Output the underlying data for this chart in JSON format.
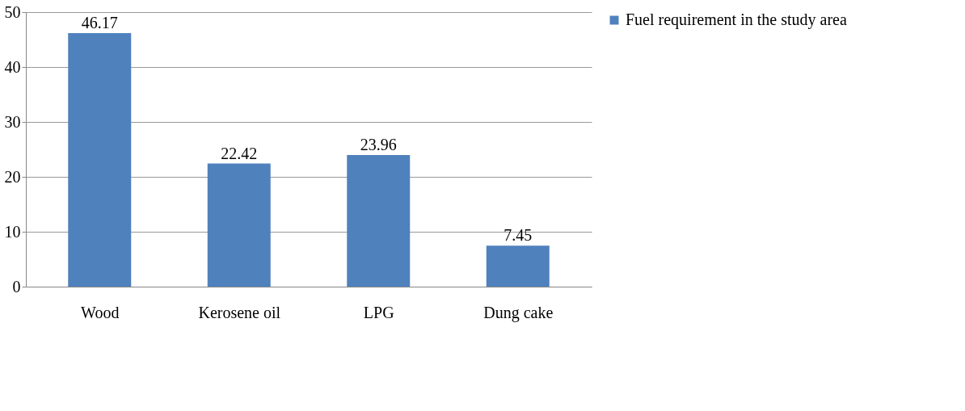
{
  "chart_data": {
    "type": "bar",
    "categories": [
      "Wood",
      "Kerosene oil",
      "LPG",
      "Dung cake"
    ],
    "series": [
      {
        "name": "Fuel requirement in the study area",
        "color": "#4f81bd",
        "values": [
          46.17,
          22.42,
          23.96,
          7.45
        ]
      }
    ],
    "ylim": [
      0,
      50
    ],
    "yticks": [
      0,
      10,
      20,
      30,
      40,
      50
    ],
    "grid": "y",
    "legend": "right",
    "data_labels": true
  }
}
